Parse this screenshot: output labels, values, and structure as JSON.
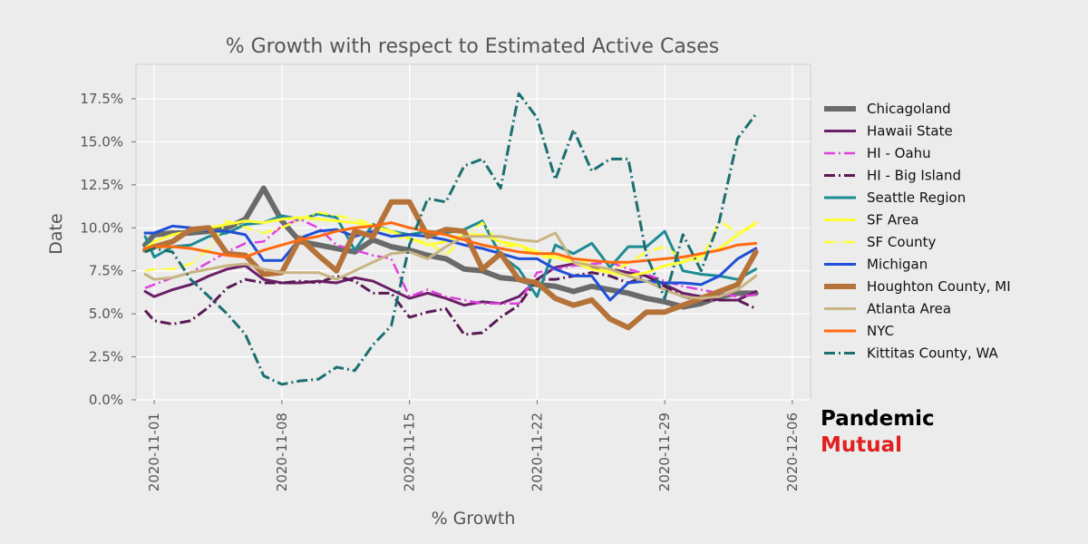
{
  "brand": {
    "line1": "Pandemic",
    "line2": "Mutual",
    "line1_color": "#000000",
    "line2_color": "#e02020"
  },
  "chart_data": {
    "type": "line",
    "title": "% Growth with respect to Estimated Active Cases",
    "xlabel": "% Growth",
    "ylabel": "Date",
    "x_start": "2020-10-31",
    "xlim": [
      0,
      37
    ],
    "ylim": [
      0,
      19.5
    ],
    "x_ticks": [
      {
        "day": 1,
        "label": "2020-11-01"
      },
      {
        "day": 8,
        "label": "2020-11-08"
      },
      {
        "day": 15,
        "label": "2020-11-15"
      },
      {
        "day": 22,
        "label": "2020-11-22"
      },
      {
        "day": 29,
        "label": "2020-11-29"
      },
      {
        "day": 36,
        "label": "2020-12-06"
      }
    ],
    "y_ticks": [
      {
        "value": 0,
        "label": "0.0%"
      },
      {
        "value": 2.5,
        "label": "2.5%"
      },
      {
        "value": 5,
        "label": "5.0%"
      },
      {
        "value": 7.5,
        "label": "7.5%"
      },
      {
        "value": 10,
        "label": "10.0%"
      },
      {
        "value": 12.5,
        "label": "12.5%"
      },
      {
        "value": 15,
        "label": "15.0%"
      },
      {
        "value": 17.5,
        "label": "17.5%"
      }
    ],
    "grid": true,
    "legend_position": "right",
    "x_days": [
      0.5,
      1,
      2,
      3,
      4,
      5,
      6,
      7,
      8,
      9,
      10,
      11,
      12,
      13,
      14,
      15,
      16,
      17,
      18,
      19,
      20,
      21,
      22,
      23,
      24,
      25,
      26,
      27,
      28,
      29,
      30,
      31,
      32,
      33,
      34
    ],
    "series": [
      {
        "name": "Chicagoland",
        "color": "#6a6a6a",
        "width": 6,
        "dash": "solid",
        "values": [
          9.0,
          9.6,
          9.7,
          9.7,
          9.8,
          10.0,
          10.5,
          12.3,
          10.4,
          9.2,
          9.0,
          8.8,
          8.6,
          9.3,
          8.9,
          8.7,
          8.4,
          8.2,
          7.6,
          7.5,
          7.1,
          7.0,
          6.7,
          6.6,
          6.3,
          6.6,
          6.4,
          6.2,
          5.9,
          5.7,
          5.4,
          5.6,
          6.0,
          6.2,
          6.2
        ]
      },
      {
        "name": "Hawaii State",
        "color": "#6a1f66",
        "width": 3,
        "dash": "solid",
        "values": [
          6.3,
          6.0,
          6.4,
          6.7,
          7.2,
          7.6,
          7.8,
          7.0,
          6.8,
          6.8,
          6.9,
          6.8,
          7.1,
          6.9,
          6.4,
          5.9,
          6.2,
          5.9,
          5.5,
          5.7,
          5.6,
          6.0,
          7.0,
          7.7,
          7.9,
          7.7,
          7.6,
          7.4,
          7.2,
          6.7,
          6.2,
          6.0,
          5.8,
          5.8,
          6.3
        ]
      },
      {
        "name": "HI - Oahu",
        "color": "#e040e0",
        "width": 2.5,
        "dash": "dashdot",
        "values": [
          6.5,
          6.7,
          7.1,
          7.4,
          8.0,
          8.6,
          9.1,
          9.2,
          10.1,
          10.5,
          10.0,
          9.0,
          8.7,
          8.4,
          8.2,
          6.0,
          6.4,
          6.0,
          5.8,
          5.6,
          5.6,
          5.6,
          7.4,
          7.6,
          7.8,
          7.9,
          8.0,
          7.6,
          7.3,
          6.9,
          6.6,
          6.4,
          6.2,
          6.0,
          6.1
        ]
      },
      {
        "name": "HI - Big Island",
        "color": "#5a1a55",
        "width": 3,
        "dash": "dashdot",
        "values": [
          5.2,
          4.6,
          4.4,
          4.6,
          5.4,
          6.5,
          7.0,
          6.8,
          6.8,
          6.9,
          6.8,
          7.2,
          6.9,
          6.2,
          6.2,
          4.8,
          5.1,
          5.3,
          3.8,
          3.9,
          4.8,
          5.5,
          7.0,
          7.0,
          7.2,
          7.4,
          7.2,
          6.8,
          7.2,
          6.6,
          6.0,
          5.8,
          5.8,
          5.8,
          5.3
        ]
      },
      {
        "name": "Seattle Region",
        "color": "#1c8c94",
        "width": 3,
        "dash": "solid",
        "values": [
          9.5,
          8.3,
          8.9,
          9.0,
          9.5,
          9.7,
          10.2,
          10.3,
          10.7,
          10.5,
          10.8,
          10.6,
          8.7,
          10.2,
          9.8,
          9.6,
          9.8,
          9.7,
          9.9,
          10.4,
          8.4,
          7.6,
          6.0,
          9.0,
          8.5,
          9.1,
          7.7,
          8.9,
          8.9,
          9.8,
          7.5,
          7.3,
          7.2,
          7.0,
          7.6
        ]
      },
      {
        "name": "SF Area",
        "color": "#ffff33",
        "width": 3,
        "dash": "solid",
        "values": [
          8.8,
          9.2,
          9.6,
          9.8,
          10.0,
          10.2,
          10.4,
          10.3,
          10.5,
          10.6,
          10.5,
          10.4,
          10.3,
          10.1,
          9.8,
          9.4,
          9.0,
          9.2,
          9.6,
          9.6,
          9.2,
          9.0,
          8.6,
          8.3,
          8.0,
          7.6,
          7.4,
          7.2,
          7.4,
          7.8,
          8.0,
          8.4,
          8.8,
          9.6,
          10.3
        ]
      },
      {
        "name": "SF County",
        "color": "#ffff33",
        "width": 2.5,
        "dash": "dashdot",
        "values": [
          7.5,
          7.6,
          7.6,
          7.9,
          8.8,
          10.4,
          10.0,
          9.7,
          10.0,
          10.5,
          10.9,
          10.7,
          10.5,
          10.2,
          9.6,
          9.3,
          9.2,
          8.4,
          9.5,
          10.3,
          9.0,
          8.9,
          8.4,
          8.2,
          8.3,
          7.8,
          7.5,
          7.9,
          8.6,
          8.9,
          8.2,
          8.1,
          10.4,
          9.7,
          10.1
        ]
      },
      {
        "name": "Michigan",
        "color": "#1f4fd6",
        "width": 3,
        "dash": "solid",
        "values": [
          9.7,
          9.7,
          10.1,
          10.0,
          9.8,
          9.8,
          9.6,
          8.1,
          8.1,
          9.4,
          9.8,
          9.9,
          9.5,
          9.8,
          9.5,
          9.6,
          9.5,
          9.3,
          9.0,
          8.8,
          8.5,
          8.2,
          8.2,
          7.6,
          7.2,
          7.2,
          5.8,
          6.8,
          6.9,
          6.8,
          6.8,
          6.7,
          7.2,
          8.2,
          8.8
        ]
      },
      {
        "name": "Houghton County, MI",
        "color": "#b5733a",
        "width": 6,
        "dash": "solid",
        "values": [
          8.7,
          8.9,
          9.2,
          9.9,
          10.0,
          8.5,
          8.4,
          7.3,
          7.4,
          9.4,
          8.4,
          7.5,
          9.8,
          9.5,
          11.5,
          11.5,
          9.5,
          9.9,
          9.8,
          7.6,
          8.5,
          7.0,
          6.8,
          5.9,
          5.5,
          5.8,
          4.7,
          4.2,
          5.1,
          5.1,
          5.5,
          5.9,
          6.3,
          6.7,
          8.6
        ]
      },
      {
        "name": "Atlanta Area",
        "color": "#c8b482",
        "width": 3,
        "dash": "solid",
        "values": [
          7.3,
          7.0,
          7.1,
          7.4,
          7.6,
          7.8,
          7.9,
          7.6,
          7.4,
          7.4,
          7.4,
          7.0,
          7.5,
          8.0,
          8.5,
          8.6,
          8.2,
          8.9,
          9.5,
          9.5,
          9.5,
          9.3,
          9.2,
          9.7,
          8.0,
          7.8,
          7.6,
          7.2,
          6.9,
          6.4,
          6.0,
          5.9,
          6.0,
          6.4,
          7.2
        ]
      },
      {
        "name": "NYC",
        "color": "#ff6a10",
        "width": 3,
        "dash": "solid",
        "values": [
          8.8,
          8.9,
          8.9,
          8.8,
          8.6,
          8.4,
          8.3,
          8.7,
          9.0,
          9.3,
          9.5,
          9.8,
          10.0,
          10.1,
          10.3,
          10.0,
          9.8,
          9.6,
          9.3,
          9.0,
          8.8,
          8.6,
          8.5,
          8.5,
          8.2,
          8.1,
          8.0,
          8.0,
          8.1,
          8.2,
          8.3,
          8.5,
          8.7,
          9.0,
          9.1
        ]
      },
      {
        "name": "Kittitas County, WA",
        "color": "#1a6f70",
        "width": 3,
        "dash": "dashdot",
        "values": [
          8.6,
          8.8,
          8.6,
          7.0,
          6.0,
          5.0,
          3.8,
          1.4,
          0.9,
          1.1,
          1.2,
          1.9,
          1.7,
          3.2,
          4.3,
          9.0,
          11.7,
          11.5,
          13.6,
          14.0,
          12.3,
          17.8,
          16.4,
          12.8,
          15.7,
          13.3,
          14.0,
          14.0,
          8.4,
          5.9,
          9.6,
          7.5,
          10.4,
          15.2,
          16.6
        ]
      }
    ]
  }
}
